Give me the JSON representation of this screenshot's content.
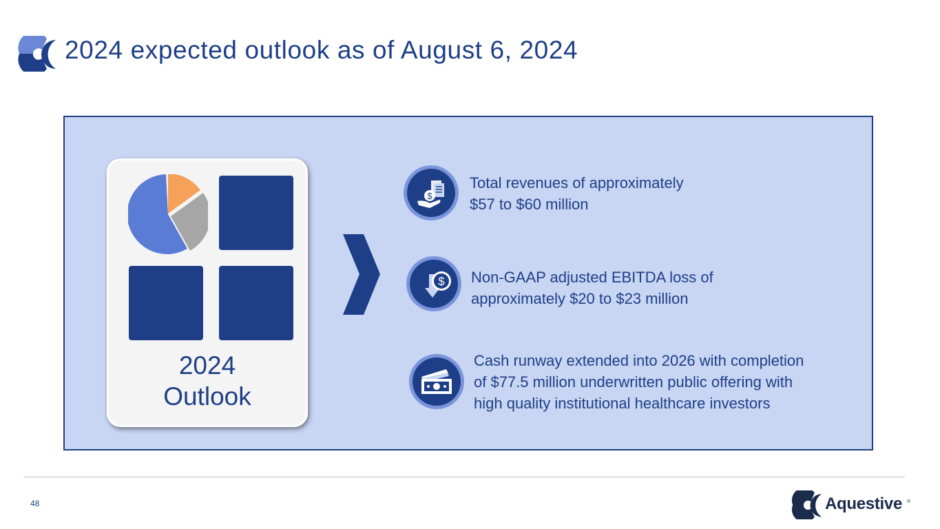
{
  "slide": {
    "title": "2024 expected outlook as of August 6, 2024",
    "page_number": "48"
  },
  "card": {
    "line1": "2024",
    "line2": "Outlook"
  },
  "items": [
    {
      "icon": "money-hand-icon",
      "line1": "Total revenues of approximately",
      "line2": "$57 to $60 million"
    },
    {
      "icon": "dollar-down-arrow-icon",
      "line1": "Non-GAAP adjusted EBITDA loss of",
      "line2": "approximately $20 to $23 million"
    },
    {
      "icon": "cash-icon",
      "line1": "Cash runway extended into 2026 with completion",
      "line2": "of $77.5 million underwritten public offering with",
      "line3": "high quality institutional healthcare investors"
    }
  ],
  "brand": {
    "name": "Aquestive",
    "reg": "®"
  },
  "colors": {
    "navy": "#1e3f87",
    "panel": "#c8d5f3",
    "pie_orange": "#f6a15a",
    "pie_gray": "#a6a6a6",
    "pie_blue": "#5b7cd4",
    "icon_ring": "#7b95dc"
  }
}
